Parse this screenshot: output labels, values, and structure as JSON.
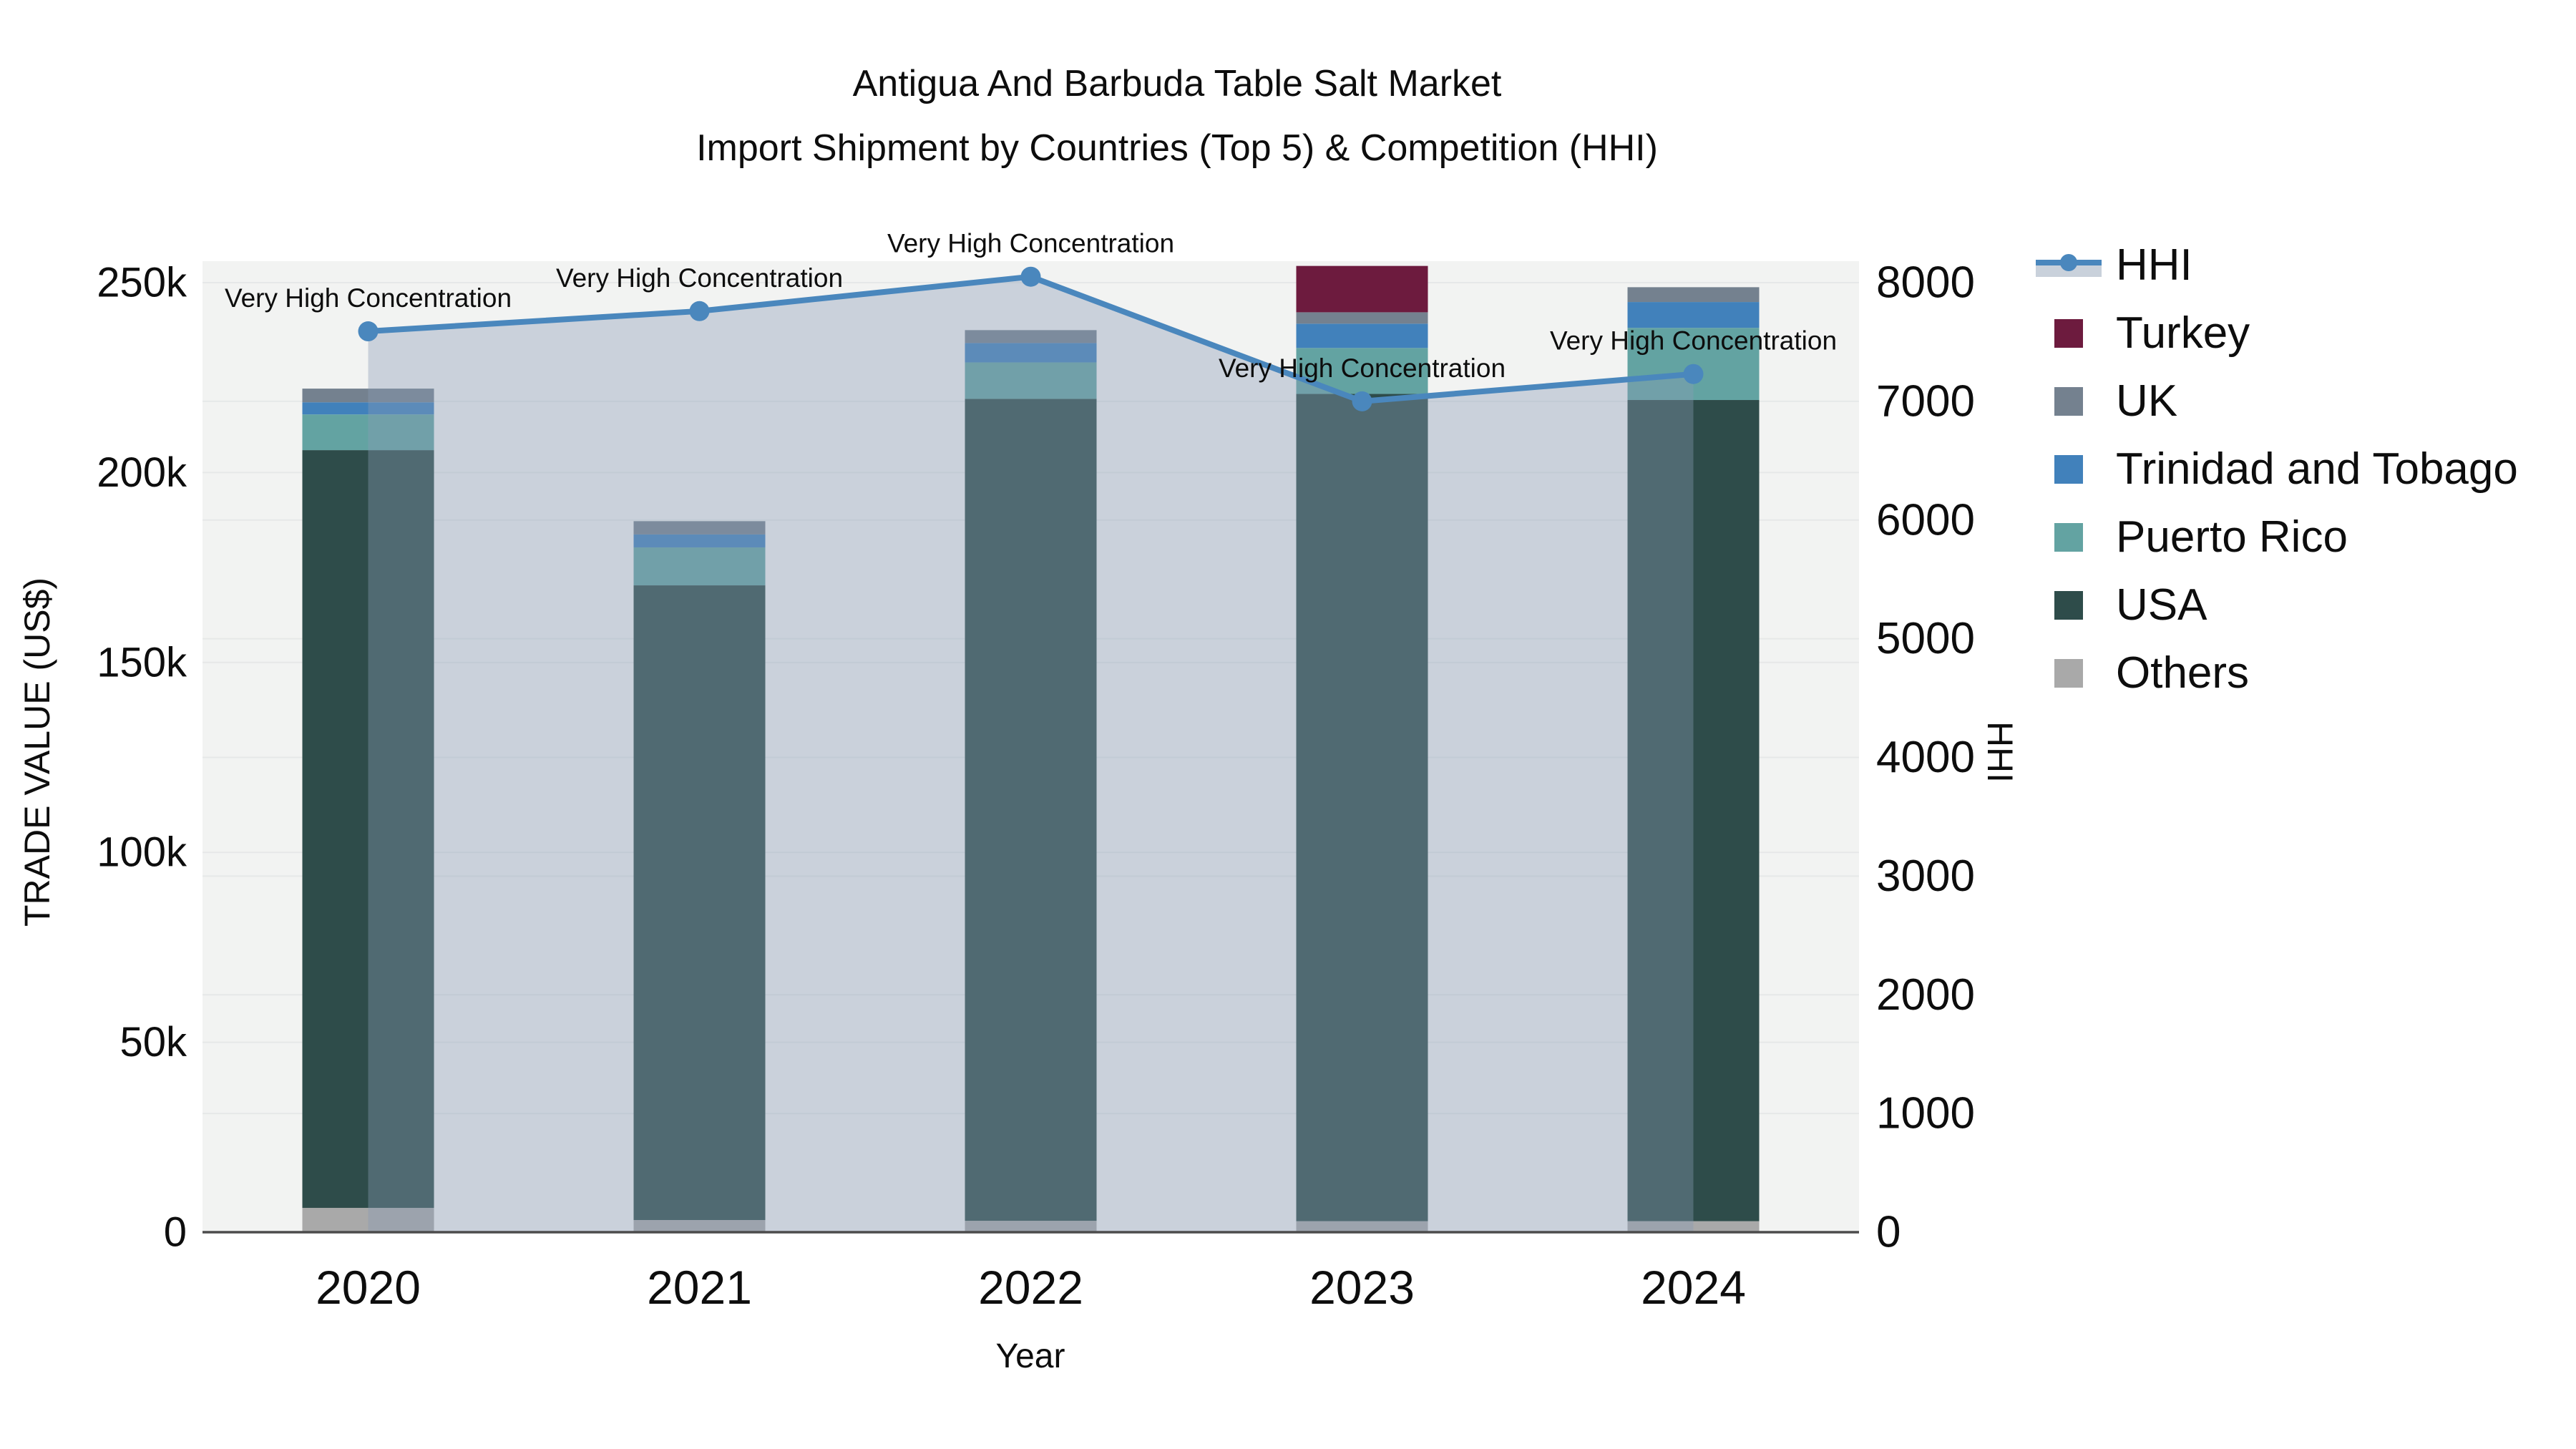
{
  "title": {
    "line1": "Antigua And Barbuda Table Salt Market",
    "line2": "Import Shipment by Countries (Top 5) & Competition (HHI)"
  },
  "axes": {
    "x_title": "Year",
    "y_left_title": "TRADE VALUE (US$)",
    "y_right_title": "HHI",
    "y_left_ticks": [
      "0",
      "50k",
      "100k",
      "150k",
      "200k",
      "250k"
    ],
    "y_left_tick_values": [
      0,
      50000,
      100000,
      150000,
      200000,
      250000
    ],
    "y_right_ticks": [
      "0",
      "1000",
      "2000",
      "3000",
      "4000",
      "5000",
      "6000",
      "7000",
      "8000"
    ],
    "y_right_tick_values": [
      0,
      1000,
      2000,
      3000,
      4000,
      5000,
      6000,
      7000,
      8000
    ],
    "y_left_max": 250000,
    "y_right_max": 8000
  },
  "chart_data": {
    "type": "bar",
    "subtype": "stacked-bars-with-line-overlay",
    "categories": [
      "2020",
      "2021",
      "2022",
      "2023",
      "2024"
    ],
    "bar_value_unit": "US$",
    "series": [
      {
        "name": "Others",
        "color": "#a9a9a9",
        "values": [
          6400,
          3200,
          3000,
          2900,
          2900
        ]
      },
      {
        "name": "USA",
        "color": "#2e4c4a",
        "values": [
          199500,
          167100,
          216400,
          217800,
          216200
        ]
      },
      {
        "name": "Puerto Rico",
        "color": "#63a3a2",
        "values": [
          9400,
          10000,
          9600,
          12100,
          19000
        ]
      },
      {
        "name": "Trinidad and Tobago",
        "color": "#4181bb",
        "values": [
          3200,
          3400,
          5100,
          6400,
          6800
        ]
      },
      {
        "name": "UK",
        "color": "#74818f",
        "values": [
          3600,
          3500,
          3400,
          3000,
          3900
        ]
      },
      {
        "name": "Turkey",
        "color": "#6d1b3e",
        "values": [
          0,
          0,
          0,
          12200,
          0
        ]
      }
    ],
    "line": {
      "name": "HHI",
      "color": "#4a87bd",
      "fill_color": "rgba(136,156,182,0.38)",
      "values": [
        7590,
        7760,
        8050,
        7000,
        7230
      ]
    },
    "annotations": [
      "Very High Concentration",
      "Very High Concentration",
      "Very High Concentration",
      "Very High Concentration",
      "Very High Concentration"
    ],
    "layout_hints": {
      "grid": "on",
      "legend_position": "right",
      "bars_total_approx": [
        222100,
        187200,
        237500,
        254400,
        248800
      ]
    }
  },
  "legend": {
    "items": [
      {
        "label": "HHI",
        "type": "line",
        "color": "#4a87bd",
        "band_color": "#c9d1db"
      },
      {
        "label": "Turkey",
        "type": "swatch",
        "color": "#6d1b3e"
      },
      {
        "label": "UK",
        "type": "swatch",
        "color": "#74818f"
      },
      {
        "label": "Trinidad and Tobago",
        "type": "swatch",
        "color": "#4181bb"
      },
      {
        "label": "Puerto Rico",
        "type": "swatch",
        "color": "#63a3a2"
      },
      {
        "label": "USA",
        "type": "swatch",
        "color": "#2e4c4a"
      },
      {
        "label": "Others",
        "type": "swatch",
        "color": "#a9a9a9"
      }
    ]
  },
  "colors": {
    "plot_background": "#f2f3f2",
    "gridline": "#e6e8e8",
    "axis_line": "#4c4c4c",
    "text": "#0d0d0d"
  }
}
